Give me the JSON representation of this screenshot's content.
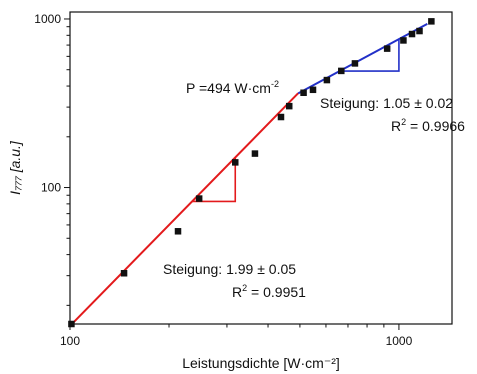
{
  "chart_data": {
    "type": "scatter",
    "x_scale": "log",
    "y_scale": "log",
    "xlim": [
      100,
      1450
    ],
    "ylim": [
      15.5,
      1100
    ],
    "xticks": [
      100,
      1000
    ],
    "xtick_labels": [
      "100",
      "1000"
    ],
    "yticks": [
      100,
      1000
    ],
    "ytick_labels": [
      "100",
      "1000"
    ],
    "xlabel": "Leistungsdichte [W·cm⁻²]",
    "ylabel": "I₇₇₇ [a.u.]",
    "grid": false,
    "points": [
      {
        "x": 101,
        "y": 15.5
      },
      {
        "x": 146,
        "y": 31
      },
      {
        "x": 213,
        "y": 55
      },
      {
        "x": 247,
        "y": 86
      },
      {
        "x": 318,
        "y": 141
      },
      {
        "x": 365,
        "y": 159
      },
      {
        "x": 438,
        "y": 262
      },
      {
        "x": 464,
        "y": 304
      },
      {
        "x": 513,
        "y": 365
      },
      {
        "x": 548,
        "y": 380
      },
      {
        "x": 604,
        "y": 434
      },
      {
        "x": 668,
        "y": 492
      },
      {
        "x": 735,
        "y": 545
      },
      {
        "x": 921,
        "y": 667
      },
      {
        "x": 1032,
        "y": 746
      },
      {
        "x": 1096,
        "y": 814
      },
      {
        "x": 1155,
        "y": 848
      },
      {
        "x": 1255,
        "y": 968
      }
    ],
    "fits": [
      {
        "color": "#e31a1c",
        "x_range": [
          100,
          494
        ],
        "slope": 1.99,
        "anchor": {
          "x": 100,
          "y": 15.1
        },
        "label": "Steigung:",
        "slope_text": "1.99",
        "error_text": "0.05",
        "r2_value": "0.9951"
      },
      {
        "color": "#2230c8",
        "x_range": [
          494,
          1220
        ],
        "slope": 1.05,
        "anchor": {
          "x": 494,
          "y": 362
        },
        "label": "Steigung:",
        "slope_text": "1.05",
        "error_text": "0.02",
        "r2_value": "0.9966"
      }
    ],
    "annotation": {
      "prefix": "P =",
      "value": "494",
      "unit": "W·cm",
      "exponent": "-2"
    }
  }
}
